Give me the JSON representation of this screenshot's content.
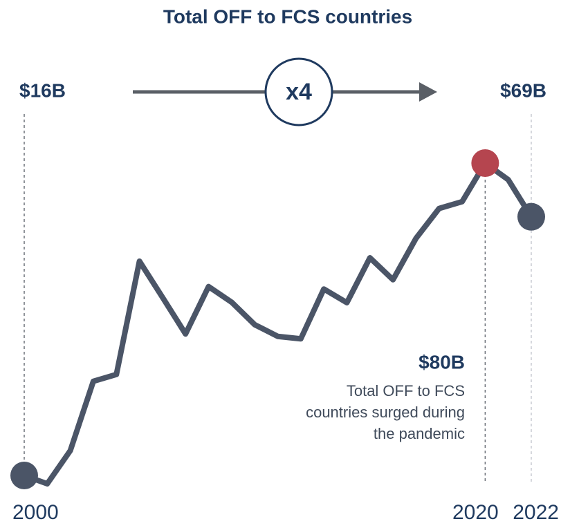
{
  "chart_data": {
    "type": "line",
    "title": "Total OFF to FCS countries",
    "categories": [
      "2000",
      null,
      null,
      null,
      null,
      null,
      null,
      null,
      null,
      null,
      null,
      null,
      null,
      null,
      null,
      null,
      null,
      null,
      null,
      null,
      "2020",
      null,
      "2022"
    ],
    "series": [
      {
        "name": "Total OFF to FCS countries",
        "color": "#4b5567",
        "values": [
          16,
          14.3,
          21.1,
          35.3,
          36.7,
          59.9,
          52.5,
          45,
          54.7,
          51.5,
          46.9,
          44.5,
          44,
          54.2,
          51.4,
          60.6,
          56.1,
          64.6,
          70.7,
          72.1,
          80,
          76.6,
          69
        ],
        "value_labels": [
          "$16B",
          null,
          null,
          null,
          null,
          null,
          null,
          null,
          null,
          null,
          null,
          null,
          null,
          null,
          null,
          null,
          null,
          null,
          null,
          null,
          "$80B",
          null,
          "$69B"
        ]
      }
    ],
    "highlight_color": "#b5454f",
    "multiplier_label": "x4",
    "annotation": [
      "Total OFF to FCS",
      "countries surged during",
      "the pandemic"
    ]
  }
}
